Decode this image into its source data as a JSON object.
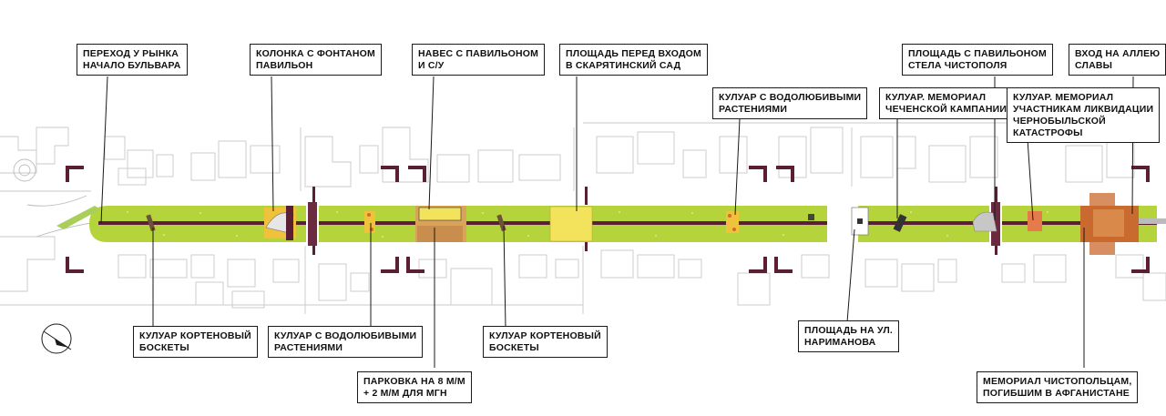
{
  "callouts_top": [
    {
      "id": "market",
      "lines": [
        "ПЕРЕХОД У РЫНКА",
        "НАЧАЛО БУЛЬВАРА"
      ]
    },
    {
      "id": "fountain",
      "lines": [
        "КОЛОНКА С ФОНТАНОМ",
        "ПАВИЛЬОН"
      ]
    },
    {
      "id": "canopy",
      "lines": [
        "НАВЕС С ПАВИЛЬОНОМ",
        "И С/У"
      ]
    },
    {
      "id": "square-garden",
      "lines": [
        "ПЛОЩАДЬ ПЕРЕД ВХОДОМ",
        "В СКАРЯТИНСКИЙ САД"
      ]
    },
    {
      "id": "coulisse-water",
      "lines": [
        "КУЛУАР С ВОДОЛЮБИВЫМИ",
        "РАСТЕНИЯМИ"
      ]
    },
    {
      "id": "chechen",
      "lines": [
        "КУЛУАР. МЕМОРИАЛ",
        "ЧЕЧЕНСКОЙ КАМПАНИИ"
      ]
    },
    {
      "id": "stele",
      "lines": [
        "ПЛОЩАДЬ С ПАВИЛЬОНОМ",
        "СТЕЛА ЧИСТОПОЛЯ"
      ]
    },
    {
      "id": "chernobyl",
      "lines": [
        "КУЛУАР. МЕМОРИАЛ",
        "УЧАСТНИКАМ ЛИКВИДАЦИИ",
        "ЧЕРНОБЫЛЬСКОЙ",
        "КАТАСТРОФЫ"
      ]
    },
    {
      "id": "glory",
      "lines": [
        "ВХОД НА АЛЛЕЮ",
        "СЛАВЫ"
      ]
    }
  ],
  "callouts_bottom": [
    {
      "id": "corten-1",
      "lines": [
        "КУЛУАР КОРТЕНОВЫЙ",
        "БОСКЕТЫ"
      ]
    },
    {
      "id": "coulisse-water-2",
      "lines": [
        "КУЛУАР С ВОДОЛЮБИВЫМИ",
        "РАСТЕНИЯМИ"
      ]
    },
    {
      "id": "parking",
      "lines": [
        "ПАРКОВКА НА 8 М/М",
        "+ 2 М/М ДЛЯ МГН"
      ]
    },
    {
      "id": "corten-2",
      "lines": [
        "КУЛУАР КОРТЕНОВЫЙ",
        "БОСКЕТЫ"
      ]
    },
    {
      "id": "narimanov",
      "lines": [
        "ПЛОЩАДЬ НА УЛ.",
        "НАРИМАНОВА"
      ]
    },
    {
      "id": "afghan",
      "lines": [
        "МЕМОРИАЛ ЧИСТОПОЛЬЦАМ,",
        "ПОГИБШИМ В АФГАНИСТАНЕ"
      ]
    }
  ],
  "colors": {
    "lawn": "#b5d33a",
    "lawn_dark": "#8db82a",
    "path": "#5a1f35",
    "bracket": "#5a1f35",
    "plaza_yellow": "#f3e35c",
    "corten": "#c96a2e",
    "building_outline": "#c8c8c8"
  },
  "icons": [
    "north-arrow-icon"
  ]
}
